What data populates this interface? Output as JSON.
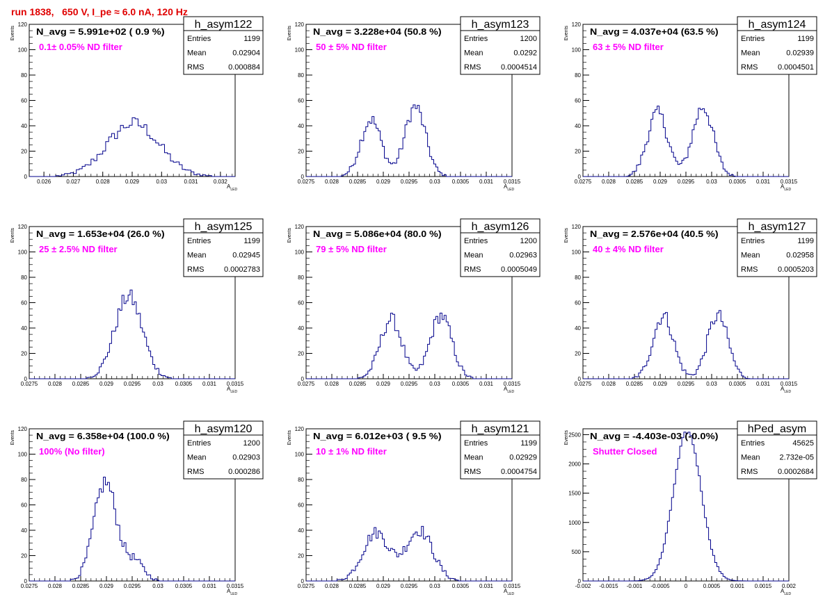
{
  "header": {
    "run_title": "run 1838,   650 V, I_pe ≈ 6.0 nA, 120 Hz"
  },
  "axis_common": {
    "xlabel": "A",
    "xlabel_sub": "LED",
    "ylabel": "Events",
    "line_color": "#00008b",
    "label_color": "#ff00ff"
  },
  "chart_data": [
    {
      "type": "histogram",
      "title": "h_asym122",
      "stats": {
        "entries": "1199",
        "mean": "0.02904",
        "rms": "0.000884"
      },
      "navg": "N_avg = 5.991e+02 ( 0.9 %)",
      "filter_label": "0.1± 0.05% ND filter",
      "xlim": [
        0.0255,
        0.0325
      ],
      "ylim": [
        0,
        120
      ],
      "xticks": [
        0.026,
        0.027,
        0.028,
        0.029,
        0.03,
        0.031,
        0.032
      ],
      "xtick_labels": [
        "0.026",
        "0.027",
        "0.028",
        "0.029",
        "0.03",
        "0.031",
        "0.032"
      ],
      "yticks": [
        0,
        20,
        40,
        60,
        80,
        100,
        120
      ],
      "peaks": [
        {
          "c": 0.02904,
          "s": 0.00088,
          "a": 42
        }
      ],
      "bin": 0.0001
    },
    {
      "type": "histogram",
      "title": "h_asym123",
      "stats": {
        "entries": "1200",
        "mean": "0.0292",
        "rms": "0.0004514"
      },
      "navg": "N_avg = 3.228e+04 (50.8 %)",
      "filter_label": "50 ± 5% ND filter",
      "xlim": [
        0.0275,
        0.0315
      ],
      "ylim": [
        0,
        120
      ],
      "xticks": [
        0.0275,
        0.028,
        0.0285,
        0.029,
        0.0295,
        0.03,
        0.0305,
        0.031,
        0.0315
      ],
      "xtick_labels": [
        "0.0275",
        "0.028",
        "0.0285",
        "0.029",
        "0.0295",
        "0.03",
        "0.0305",
        "0.031",
        "0.0315"
      ],
      "yticks": [
        0,
        20,
        40,
        60,
        80,
        100,
        120
      ],
      "peaks": [
        {
          "c": 0.02876,
          "s": 0.0002,
          "a": 45
        },
        {
          "c": 0.02962,
          "s": 0.0002,
          "a": 55
        }
      ],
      "bin": 4e-05
    },
    {
      "type": "histogram",
      "title": "h_asym124",
      "stats": {
        "entries": "1199",
        "mean": "0.02939",
        "rms": "0.0004501"
      },
      "navg": "N_avg = 4.037e+04 (63.5 %)",
      "filter_label": "63 ± 5% ND filter",
      "xlim": [
        0.0275,
        0.0315
      ],
      "ylim": [
        0,
        120
      ],
      "xticks": [
        0.0275,
        0.028,
        0.0285,
        0.029,
        0.0295,
        0.03,
        0.0305,
        0.031,
        0.0315
      ],
      "xtick_labels": [
        "0.0275",
        "0.028",
        "0.0285",
        "0.029",
        "0.0295",
        "0.03",
        "0.0305",
        "0.031",
        "0.0315"
      ],
      "yticks": [
        0,
        20,
        40,
        60,
        80,
        100,
        120
      ],
      "peaks": [
        {
          "c": 0.02895,
          "s": 0.0002,
          "a": 50
        },
        {
          "c": 0.02983,
          "s": 0.0002,
          "a": 55
        }
      ],
      "bin": 4e-05
    },
    {
      "type": "histogram",
      "title": "h_asym125",
      "stats": {
        "entries": "1199",
        "mean": "0.02945",
        "rms": "0.0002783"
      },
      "navg": "N_avg = 1.653e+04 (26.0 %)",
      "filter_label": "25 ± 2.5% ND filter",
      "xlim": [
        0.0275,
        0.0315
      ],
      "ylim": [
        0,
        120
      ],
      "xticks": [
        0.0275,
        0.028,
        0.0285,
        0.029,
        0.0295,
        0.03,
        0.0305,
        0.031,
        0.0315
      ],
      "xtick_labels": [
        "0.0275",
        "0.028",
        "0.0285",
        "0.029",
        "0.0295",
        "0.03",
        "0.0305",
        "0.031",
        "0.0315"
      ],
      "yticks": [
        0,
        20,
        40,
        60,
        80,
        100,
        120
      ],
      "peaks": [
        {
          "c": 0.02943,
          "s": 0.00027,
          "a": 65
        }
      ],
      "bin": 4e-05
    },
    {
      "type": "histogram",
      "title": "h_asym126",
      "stats": {
        "entries": "1200",
        "mean": "0.02963",
        "rms": "0.0005049"
      },
      "navg": "N_avg = 5.086e+04 (80.0 %)",
      "filter_label": "79 ± 5% ND filter",
      "xlim": [
        0.0275,
        0.0315
      ],
      "ylim": [
        0,
        120
      ],
      "xticks": [
        0.0275,
        0.028,
        0.0285,
        0.029,
        0.0295,
        0.03,
        0.0305,
        0.031,
        0.0315
      ],
      "xtick_labels": [
        "0.0275",
        "0.028",
        "0.0285",
        "0.029",
        "0.0295",
        "0.03",
        "0.0305",
        "0.031",
        "0.0315"
      ],
      "yticks": [
        0,
        20,
        40,
        60,
        80,
        100,
        120
      ],
      "peaks": [
        {
          "c": 0.02915,
          "s": 0.00021,
          "a": 47
        },
        {
          "c": 0.03012,
          "s": 0.00021,
          "a": 50
        }
      ],
      "bin": 4e-05
    },
    {
      "type": "histogram",
      "title": "h_asym127",
      "stats": {
        "entries": "1199",
        "mean": "0.02958",
        "rms": "0.0005203"
      },
      "navg": "N_avg = 2.576e+04 (40.5 %)",
      "filter_label": "40 ± 4% ND filter",
      "xlim": [
        0.0275,
        0.0315
      ],
      "ylim": [
        0,
        120
      ],
      "xticks": [
        0.0275,
        0.028,
        0.0285,
        0.029,
        0.0295,
        0.03,
        0.0305,
        0.031,
        0.0315
      ],
      "xtick_labels": [
        "0.0275",
        "0.028",
        "0.0285",
        "0.029",
        "0.0295",
        "0.03",
        "0.0305",
        "0.031",
        "0.0315"
      ],
      "yticks": [
        0,
        20,
        40,
        60,
        80,
        100,
        120
      ],
      "peaks": [
        {
          "c": 0.02906,
          "s": 0.0002,
          "a": 50
        },
        {
          "c": 0.03012,
          "s": 0.0002,
          "a": 50
        }
      ],
      "bin": 4e-05
    },
    {
      "type": "histogram",
      "title": "h_asym120",
      "stats": {
        "entries": "1200",
        "mean": "0.02903",
        "rms": "0.000286"
      },
      "navg": "N_avg = 6.358e+04 (100.0 %)",
      "filter_label": "100% (No filter)",
      "xlim": [
        0.0275,
        0.0315
      ],
      "ylim": [
        0,
        120
      ],
      "xticks": [
        0.0275,
        0.028,
        0.0285,
        0.029,
        0.0295,
        0.03,
        0.0305,
        0.031,
        0.0315
      ],
      "xtick_labels": [
        "0.0275",
        "0.028",
        "0.0285",
        "0.029",
        "0.0295",
        "0.03",
        "0.0305",
        "0.031",
        "0.0315"
      ],
      "yticks": [
        0,
        20,
        40,
        60,
        80,
        100,
        120
      ],
      "peaks": [
        {
          "c": 0.02898,
          "s": 0.00022,
          "a": 78
        },
        {
          "c": 0.02955,
          "s": 0.00018,
          "a": 15
        }
      ],
      "bin": 4e-05
    },
    {
      "type": "histogram",
      "title": "h_asym121",
      "stats": {
        "entries": "1199",
        "mean": "0.02929",
        "rms": "0.0004754"
      },
      "navg": "N_avg = 6.012e+03 ( 9.5 %)",
      "filter_label": "10 ± 1% ND filter",
      "xlim": [
        0.0275,
        0.0315
      ],
      "ylim": [
        0,
        120
      ],
      "xticks": [
        0.0275,
        0.028,
        0.0285,
        0.029,
        0.0295,
        0.03,
        0.0305,
        0.031,
        0.0315
      ],
      "xtick_labels": [
        "0.0275",
        "0.028",
        "0.0285",
        "0.029",
        "0.0295",
        "0.03",
        "0.0305",
        "0.031",
        "0.0315"
      ],
      "yticks": [
        0,
        20,
        40,
        60,
        80,
        100,
        120
      ],
      "peaks": [
        {
          "c": 0.02886,
          "s": 0.00026,
          "a": 38
        },
        {
          "c": 0.0297,
          "s": 0.00026,
          "a": 40
        }
      ],
      "bin": 4e-05
    },
    {
      "type": "histogram",
      "title": "hPed_asym",
      "stats": {
        "entries": "45625",
        "mean": "2.732e-05",
        "rms": "0.0002684"
      },
      "navg": "N_avg = -4.403e-03 (-0.0%)",
      "filter_label": "Shutter Closed",
      "xlim": [
        -0.002,
        0.002
      ],
      "ylim": [
        0,
        2600
      ],
      "xticks": [
        -0.002,
        -0.0015,
        -0.001,
        -0.0005,
        0,
        0.0005,
        0.001,
        0.0015,
        0.002
      ],
      "xtick_labels": [
        "-0.002",
        "-0.0015",
        "-0.001",
        "-0.0005",
        "0",
        "0.0005",
        "0.001",
        "0.0015",
        "0.002"
      ],
      "yticks": [
        0,
        500,
        1000,
        1500,
        2000,
        2500
      ],
      "peaks": [
        {
          "c": 3e-05,
          "s": 0.00027,
          "a": 2550
        }
      ],
      "bin": 4e-05
    }
  ]
}
